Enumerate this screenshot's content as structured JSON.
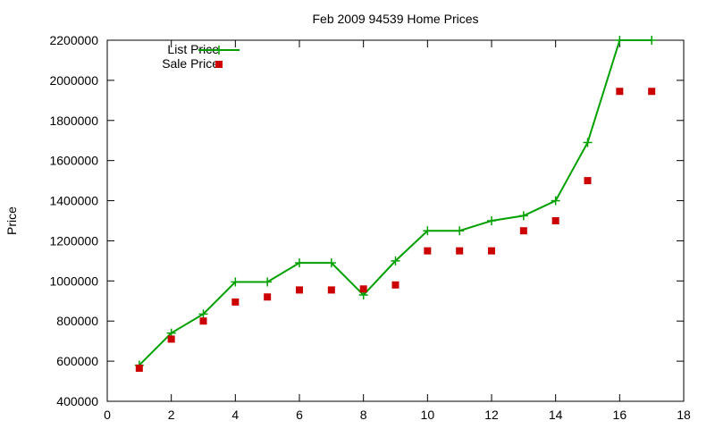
{
  "chart_data": {
    "type": "line",
    "title": "Feb 2009 94539 Home Prices",
    "xlabel": "",
    "ylabel": "Price",
    "xlim": [
      0,
      18
    ],
    "ylim": [
      400000,
      2200000
    ],
    "xticks": [
      0,
      2,
      4,
      6,
      8,
      10,
      12,
      14,
      16,
      18
    ],
    "yticks": [
      400000,
      600000,
      800000,
      1000000,
      1200000,
      1400000,
      1600000,
      1800000,
      2000000,
      2200000
    ],
    "grid": false,
    "legend_position": "top-left",
    "series": [
      {
        "name": "List Price",
        "style": "line-with-plus-markers",
        "color": "#00a000",
        "x": [
          1,
          2,
          3,
          4,
          5,
          6,
          7,
          8,
          9,
          10,
          11,
          12,
          13,
          14,
          15,
          16,
          17
        ],
        "y": [
          580000,
          740000,
          835000,
          995000,
          995000,
          1090000,
          1090000,
          930000,
          1100000,
          1250000,
          1250000,
          1300000,
          1325000,
          1400000,
          1690000,
          2200000,
          2200000
        ]
      },
      {
        "name": "Sale Price",
        "style": "square-markers",
        "color": "#cc0000",
        "x": [
          1,
          2,
          3,
          4,
          5,
          6,
          7,
          8,
          9,
          10,
          11,
          12,
          13,
          14,
          15,
          16,
          17
        ],
        "y": [
          565000,
          710000,
          800000,
          895000,
          920000,
          955000,
          955000,
          960000,
          980000,
          1150000,
          1150000,
          1150000,
          1250000,
          1300000,
          1500000,
          1945000,
          1945000
        ]
      }
    ]
  }
}
